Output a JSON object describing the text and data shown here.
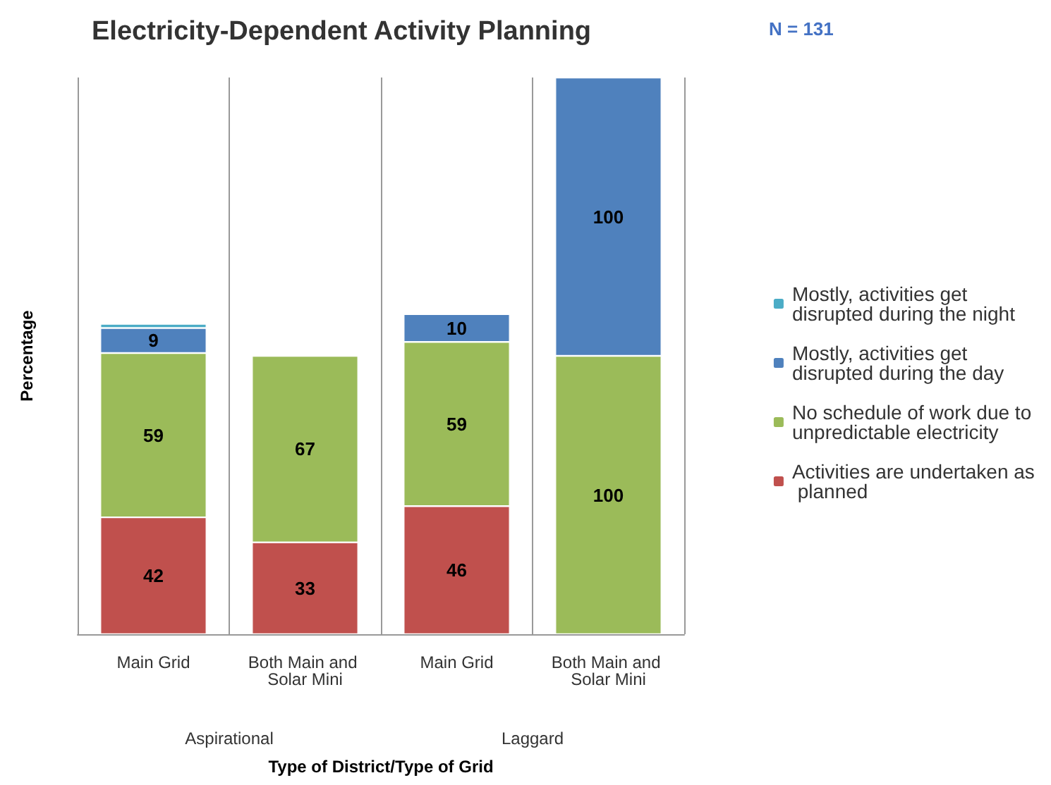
{
  "chart_data": {
    "type": "bar",
    "title": "Electricity-Dependent Activity Planning",
    "annotations": [
      "N = 131",
      "Aspirational",
      "Laggard"
    ],
    "xlabel": "Type of District/Type of Grid",
    "ylabel": "Percentage",
    "categories": [
      "Main Grid",
      "Both Main and Solar Mini",
      "Main Grid",
      "Both Main and Solar Mini"
    ],
    "stacked": true,
    "grid": "x",
    "legend": "right",
    "series": [
      {
        "name": "Activities are undertaken as planned",
        "color": "#c0504d",
        "values": [
          42,
          33,
          46,
          null
        ],
        "value_labels": [
          "42",
          "33",
          "46",
          null
        ]
      },
      {
        "name": "No schedule of work due to unpredictable electricity",
        "color": "#9bbb59",
        "values": [
          59,
          67,
          59,
          100
        ],
        "value_labels": [
          "59",
          "67",
          "59",
          "100"
        ]
      },
      {
        "name": "Mostly, activities get disrupted during the day",
        "color": "#4f81bd",
        "values": [
          9,
          null,
          10,
          100
        ],
        "value_labels": [
          "9",
          null,
          "10",
          "100"
        ]
      },
      {
        "name": "Mostly, activities get disrupted during the night",
        "color": "#4bacc6",
        "values": [
          1.5,
          null,
          null,
          null
        ],
        "value_labels": [
          null,
          null,
          null,
          null
        ]
      }
    ]
  }
}
